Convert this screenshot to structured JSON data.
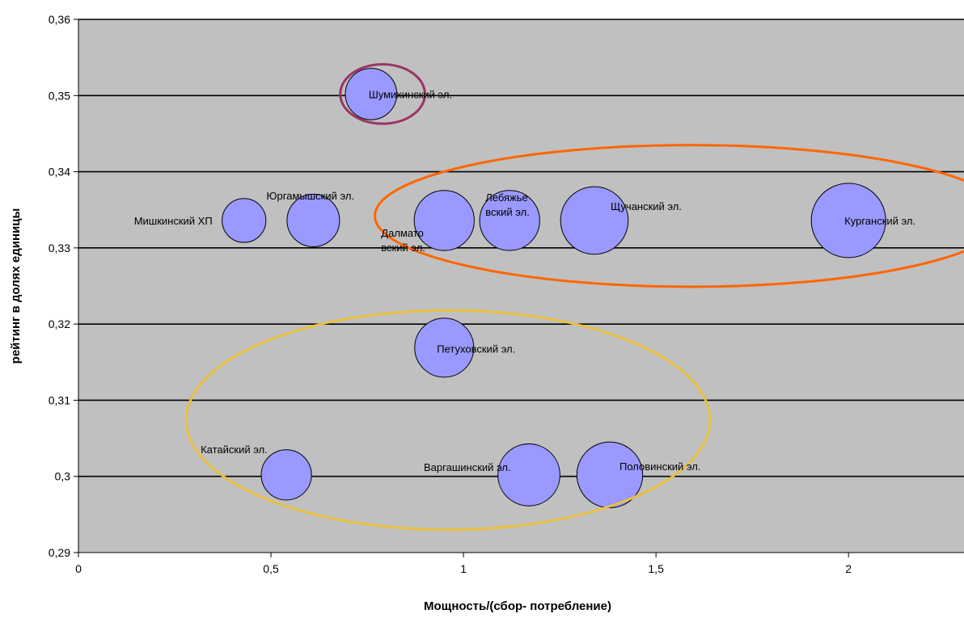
{
  "chart_data": {
    "type": "bubble",
    "title": "",
    "xlabel": "Мощность/(сбор- потребление)",
    "ylabel": "рейтинг в долях единицы",
    "xlim": [
      0,
      2.3
    ],
    "ylim": [
      0.29,
      0.36
    ],
    "x_ticks": [
      "0",
      "0,5",
      "1",
      "1,5",
      "2"
    ],
    "y_ticks": [
      "0,29",
      "0,3",
      "0,31",
      "0,32",
      "0,33",
      "0,34",
      "0,35",
      "0,36"
    ],
    "grid": "horizontal",
    "plot_background": "#c0c0c0",
    "bubble_color": "#9999ff",
    "points": [
      {
        "label": "Шумихинский эл.",
        "x": 0.76,
        "y": 0.3502,
        "size": 0.22
      },
      {
        "label": "Мишкинский ХП",
        "x": 0.43,
        "y": 0.3336,
        "size": 0.16
      },
      {
        "label": "Юргамышский эл.",
        "x": 0.61,
        "y": 0.3336,
        "size": 0.23
      },
      {
        "label": "Далматовский эл.",
        "x": 0.95,
        "y": 0.3336,
        "size": 0.3
      },
      {
        "label": "Лебяжьевский эл.",
        "x": 1.12,
        "y": 0.3336,
        "size": 0.3
      },
      {
        "label": "Щучанский эл.",
        "x": 1.34,
        "y": 0.3336,
        "size": 0.38
      },
      {
        "label": "Курганский эл.",
        "x": 2.0,
        "y": 0.3336,
        "size": 0.46
      },
      {
        "label": "Петуховский эл.",
        "x": 0.95,
        "y": 0.3169,
        "size": 0.29
      },
      {
        "label": "Катайский эл.",
        "x": 0.54,
        "y": 0.3002,
        "size": 0.21
      },
      {
        "label": "Варгашинский эл.",
        "x": 1.17,
        "y": 0.3002,
        "size": 0.32
      },
      {
        "label": "Половинский эл.",
        "x": 1.38,
        "y": 0.3002,
        "size": 0.36
      }
    ],
    "annotations": [
      {
        "type": "ellipse",
        "color": "#993366",
        "cx": 0.79,
        "cy": 0.3502,
        "rx": 0.11,
        "ry": 0.0039
      },
      {
        "type": "ellipse",
        "color": "#ff6600",
        "cx": 1.59,
        "cy": 0.3342,
        "rx": 0.82,
        "ry": 0.0093
      },
      {
        "type": "ellipse",
        "color": "#e8c040",
        "cx": 0.96,
        "cy": 0.3074,
        "rx": 0.68,
        "ry": 0.0144
      }
    ]
  }
}
